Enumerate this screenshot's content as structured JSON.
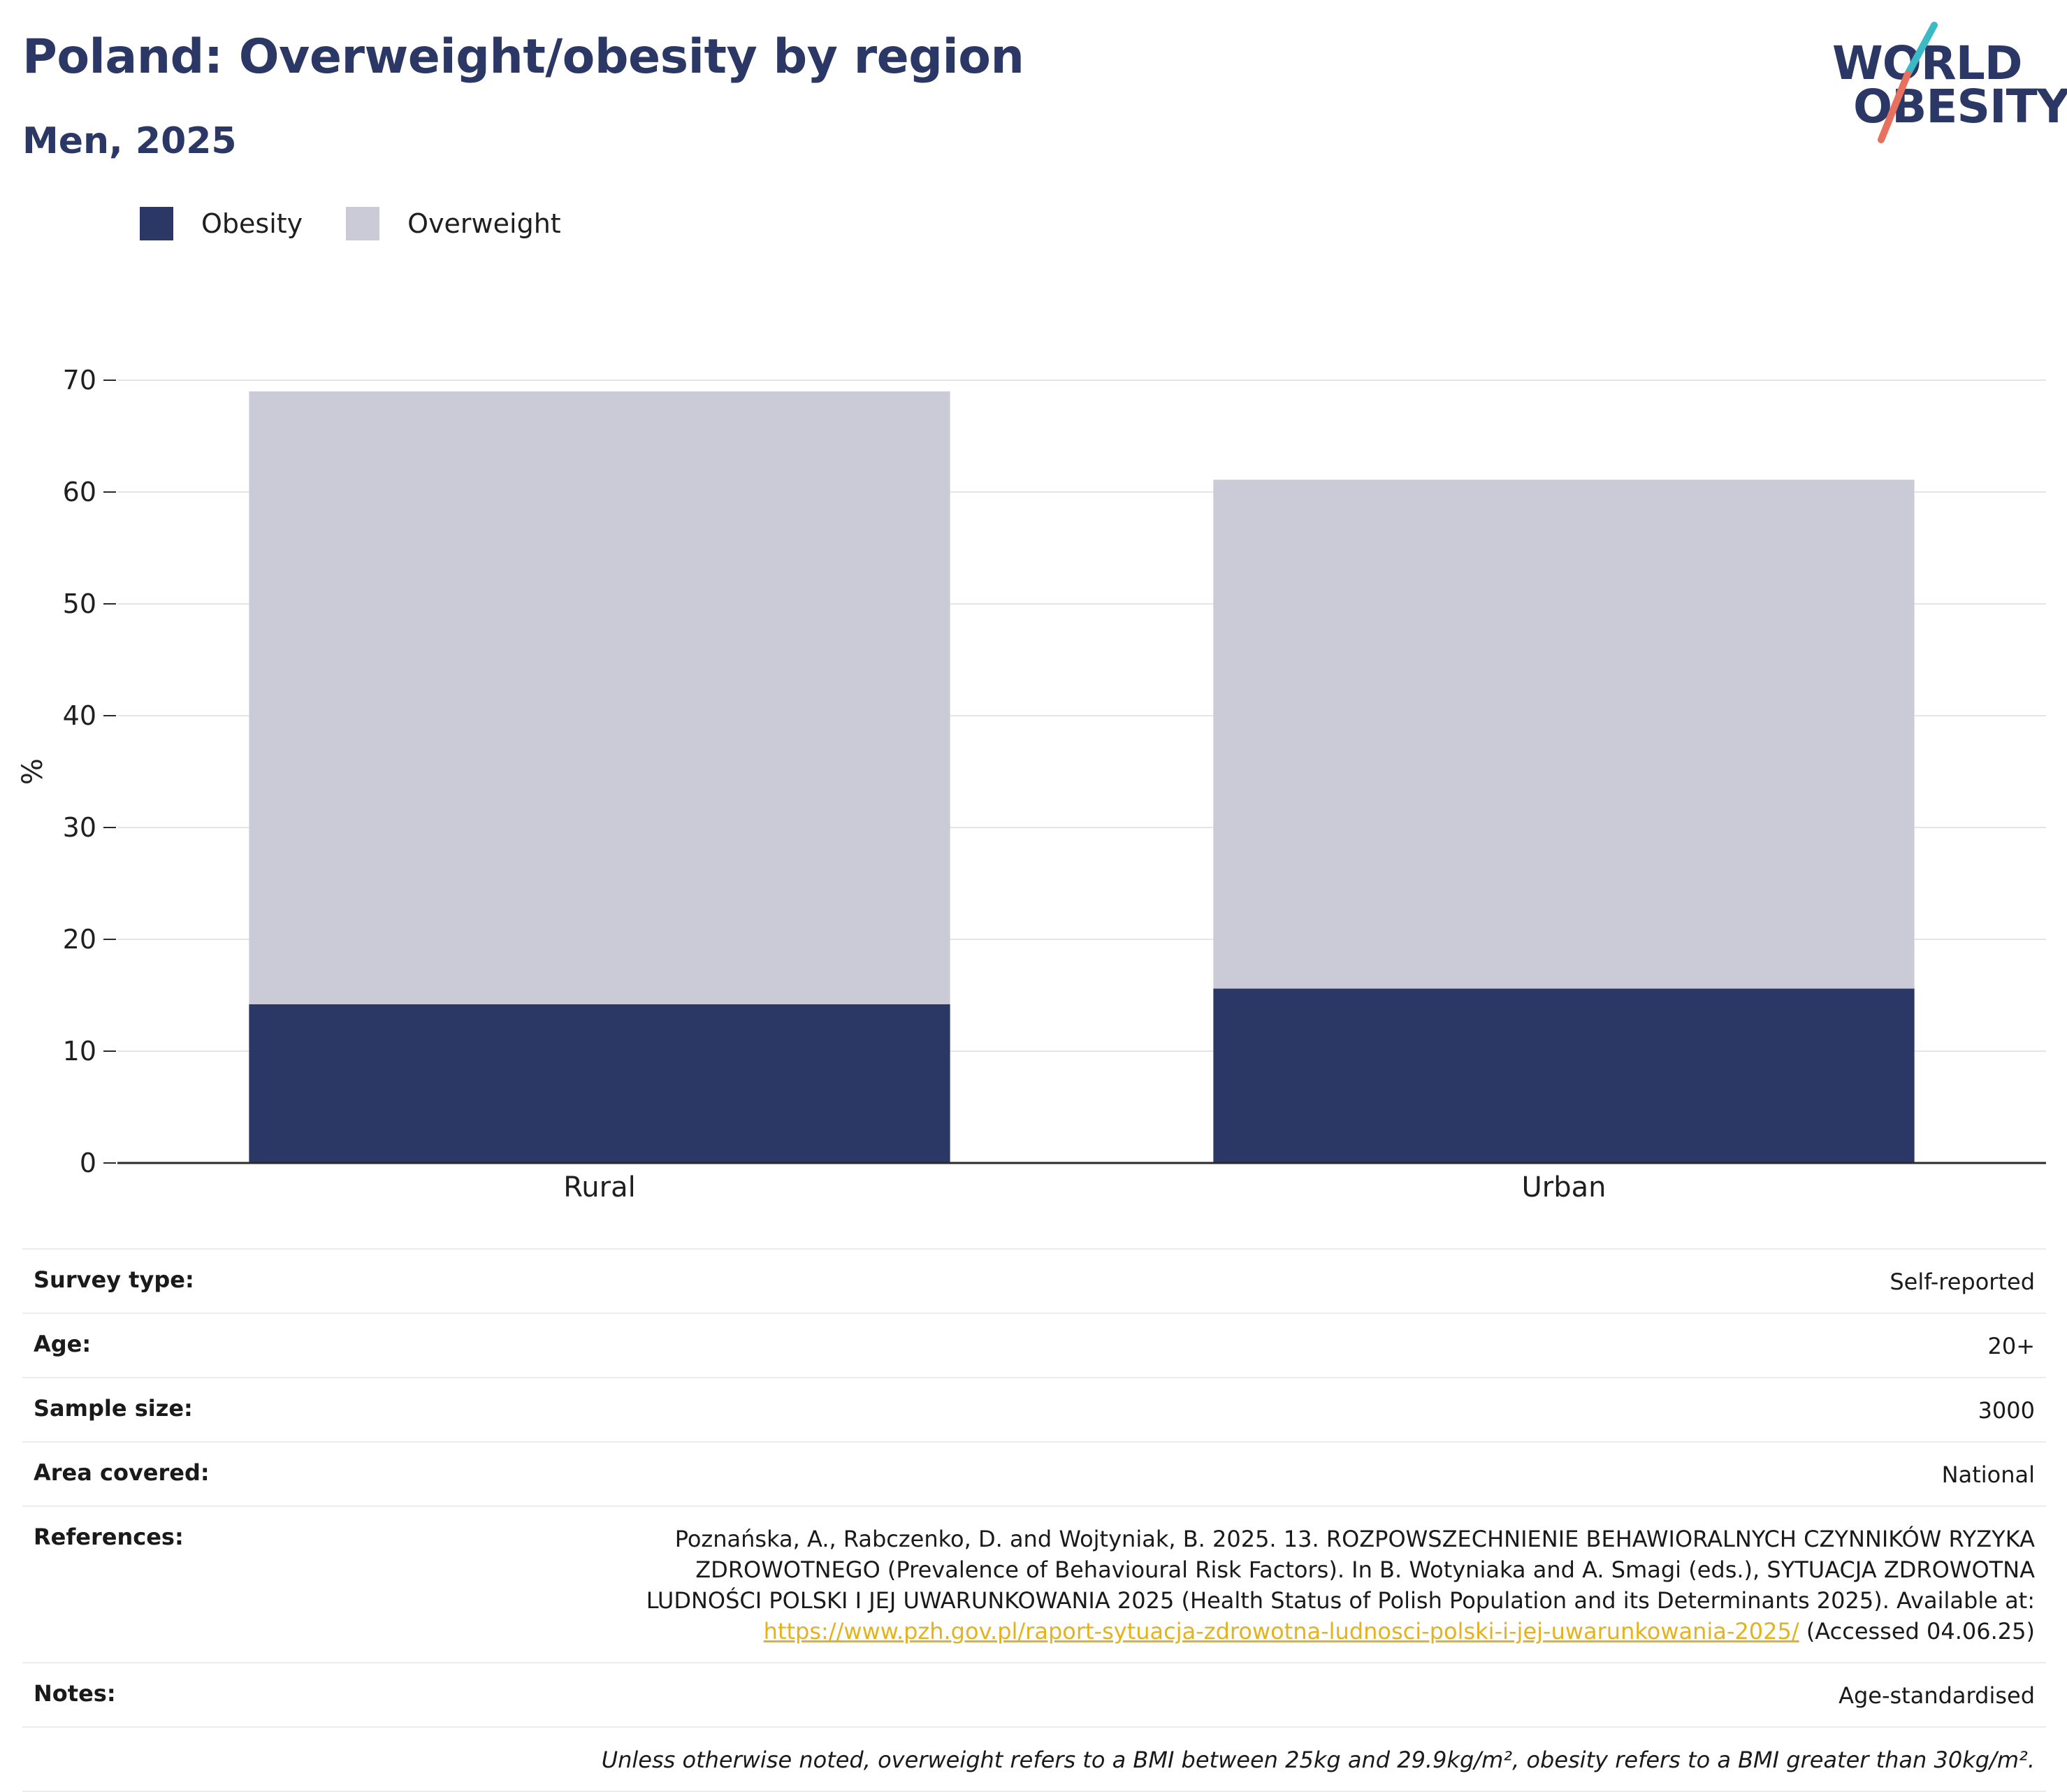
{
  "header": {
    "title": "Poland: Overweight/obesity by region",
    "subtitle": "Men, 2025"
  },
  "logo": {
    "line1": "WORLD",
    "line2": "OBESITY",
    "colors": {
      "text": "#2b3765",
      "teal": "#3bb9c4",
      "coral": "#e8705e"
    }
  },
  "legend": [
    {
      "label": "Obesity",
      "color": "#2b3765"
    },
    {
      "label": "Overweight",
      "color": "#cacbd7"
    }
  ],
  "chart_data": {
    "type": "bar",
    "stacked": true,
    "categories": [
      "Rural",
      "Urban"
    ],
    "series": [
      {
        "name": "Obesity",
        "values": [
          14.2,
          15.6
        ],
        "color": "#2b3765"
      },
      {
        "name": "Overweight",
        "values": [
          54.8,
          45.5
        ],
        "color": "#cacbd7"
      }
    ],
    "ylabel": "%",
    "ylim": [
      0,
      70
    ],
    "yticks": [
      0,
      10,
      20,
      30,
      40,
      50,
      60,
      70
    ],
    "grid": true,
    "legend_position": "top-left"
  },
  "info": {
    "survey_type": {
      "label": "Survey type:",
      "value": "Self-reported"
    },
    "age": {
      "label": "Age:",
      "value": "20+"
    },
    "sample_size": {
      "label": "Sample size:",
      "value": "3000"
    },
    "area_covered": {
      "label": "Area covered:",
      "value": "National"
    },
    "references": {
      "label": "References:",
      "text": "Poznańska, A., Rabczenko, D. and Wojtyniak, B. 2025. 13. ROZPOWSZECHNIENIE BEHAWIORALNYCH CZYNNIKÓW RYZYKA ZDROWOTNEGO (Prevalence of Behavioural Risk Factors). In B. Wotyniaka and A. Smagi (eds.), SYTUACJA ZDROWOTNA LUDNOŚCI POLSKI I JEJ UWARUNKOWANIA 2025 (Health Status of Polish Population and its Determinants 2025). Available at:",
      "link": "https://www.pzh.gov.pl/raport-sytuacja-zdrowotna-ludnosci-polski-i-jej-uwarunkowania-2025/",
      "accessed": " (Accessed 04.06.25)"
    },
    "notes": {
      "label": "Notes:",
      "value": "Age-standardised"
    },
    "disclaimer": "Unless otherwise noted, overweight refers to a BMI between 25kg and 29.9kg/m², obesity refers to a BMI greater than 30kg/m²."
  }
}
